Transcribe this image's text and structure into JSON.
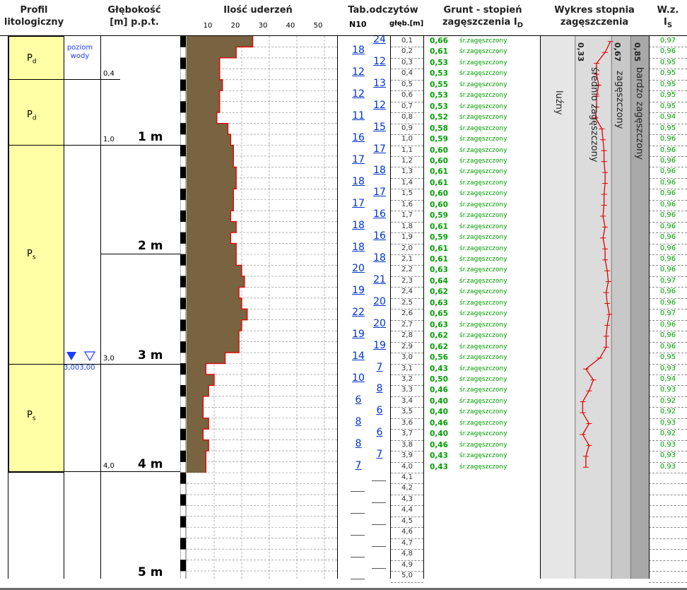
{
  "headers": {
    "profile_line1": "Profil",
    "profile_line2": "litologiczny",
    "depth_line1": "Głębokość",
    "depth_line2": "[m] p.p.t.",
    "blows_title": "Ilość uderzeń",
    "blows_ticks": [
      "10",
      "20",
      "30",
      "40",
      "50"
    ],
    "readings_title": "Tab.odczytów",
    "readings_sub_n10": "N10",
    "readings_sub_depth": "głęb.[m]",
    "soil_line1": "Grunt - stopień",
    "soil_line2": "zagęszczenia I",
    "soil_line2_sub": "D",
    "plot_line1": "Wykres stopnia",
    "plot_line2": "zagęszczenia",
    "wz_line1": "W.z.",
    "wz_line2": "I",
    "wz_line2_sub": "S"
  },
  "layers": [
    {
      "symbol": "P",
      "sub": "d"
    },
    {
      "symbol": "P",
      "sub": "d"
    },
    {
      "symbol": "P",
      "sub": "s"
    },
    {
      "symbol": "P",
      "sub": "s"
    }
  ],
  "water_label": "poziom wody",
  "water_level_label": "3,003,00",
  "boundary_depths": [
    "0,4",
    "1,0",
    "3,0",
    "4,0"
  ],
  "meter_labels": [
    "1 m",
    "2 m",
    "3 m",
    "4 m",
    "5 m"
  ],
  "rows": [
    {
      "depth": "0,1",
      "id": "0,66",
      "desc": "śr.zagęszczony",
      "is": "0,97",
      "blows": 24
    },
    {
      "depth": "0,2",
      "id": "0,61",
      "desc": "śr.zagęszczony",
      "is": "0,96",
      "blows": 18
    },
    {
      "depth": "0,3",
      "id": "0,53",
      "desc": "śr.zagęszczony",
      "is": "0,95",
      "blows": 12
    },
    {
      "depth": "0,4",
      "id": "0,53",
      "desc": "śr.zagęszczony",
      "is": "0,95",
      "blows": 12
    },
    {
      "depth": "0,5",
      "id": "0,55",
      "desc": "śr.zagęszczony",
      "is": "0,95",
      "blows": 13
    },
    {
      "depth": "0,6",
      "id": "0,53",
      "desc": "śr.zagęszczony",
      "is": "0,95",
      "blows": 12
    },
    {
      "depth": "0,7",
      "id": "0,53",
      "desc": "śr.zagęszczony",
      "is": "0,95",
      "blows": 12
    },
    {
      "depth": "0,8",
      "id": "0,52",
      "desc": "śr.zagęszczony",
      "is": "0,94",
      "blows": 11
    },
    {
      "depth": "0,9",
      "id": "0,58",
      "desc": "śr.zagęszczony",
      "is": "0,95",
      "blows": 15
    },
    {
      "depth": "1,0",
      "id": "0,59",
      "desc": "śr.zagęszczony",
      "is": "0,96",
      "blows": 16
    },
    {
      "depth": "1,1",
      "id": "0,60",
      "desc": "śr.zagęszczony",
      "is": "0,96",
      "blows": 17
    },
    {
      "depth": "1,2",
      "id": "0,60",
      "desc": "śr.zagęszczony",
      "is": "0,96",
      "blows": 17
    },
    {
      "depth": "1,3",
      "id": "0,61",
      "desc": "śr.zagęszczony",
      "is": "0,96",
      "blows": 18
    },
    {
      "depth": "1,4",
      "id": "0,61",
      "desc": "śr.zagęszczony",
      "is": "0,96",
      "blows": 18
    },
    {
      "depth": "1,5",
      "id": "0,60",
      "desc": "śr.zagęszczony",
      "is": "0,96",
      "blows": 17
    },
    {
      "depth": "1,6",
      "id": "0,60",
      "desc": "śr.zagęszczony",
      "is": "0,96",
      "blows": 17
    },
    {
      "depth": "1,7",
      "id": "0,59",
      "desc": "śr.zagęszczony",
      "is": "0,96",
      "blows": 16
    },
    {
      "depth": "1,8",
      "id": "0,61",
      "desc": "śr.zagęszczony",
      "is": "0,96",
      "blows": 18
    },
    {
      "depth": "1,9",
      "id": "0,59",
      "desc": "śr.zagęszczony",
      "is": "0,96",
      "blows": 16
    },
    {
      "depth": "2,0",
      "id": "0,61",
      "desc": "śr.zagęszczony",
      "is": "0,96",
      "blows": 18
    },
    {
      "depth": "2,1",
      "id": "0,61",
      "desc": "śr.zagęszczony",
      "is": "0,96",
      "blows": 18
    },
    {
      "depth": "2,2",
      "id": "0,63",
      "desc": "śr.zagęszczony",
      "is": "0,96",
      "blows": 20
    },
    {
      "depth": "2,3",
      "id": "0,64",
      "desc": "śr.zagęszczony",
      "is": "0,97",
      "blows": 21
    },
    {
      "depth": "2,4",
      "id": "0,62",
      "desc": "śr.zagęszczony",
      "is": "0,96",
      "blows": 19
    },
    {
      "depth": "2,5",
      "id": "0,63",
      "desc": "śr.zagęszczony",
      "is": "0,96",
      "blows": 20
    },
    {
      "depth": "2,6",
      "id": "0,65",
      "desc": "śr.zagęszczony",
      "is": "0,97",
      "blows": 22
    },
    {
      "depth": "2,7",
      "id": "0,63",
      "desc": "śr.zagęszczony",
      "is": "0,96",
      "blows": 20
    },
    {
      "depth": "2,8",
      "id": "0,62",
      "desc": "śr.zagęszczony",
      "is": "0,96",
      "blows": 19
    },
    {
      "depth": "2,9",
      "id": "0,62",
      "desc": "śr.zagęszczony",
      "is": "0,96",
      "blows": 19
    },
    {
      "depth": "3,0",
      "id": "0,56",
      "desc": "śr.zagęszczony",
      "is": "0,95",
      "blows": 14
    },
    {
      "depth": "3,1",
      "id": "0,43",
      "desc": "śr.zagęszczony",
      "is": "0,93",
      "blows": 7
    },
    {
      "depth": "3,2",
      "id": "0,50",
      "desc": "śr.zagęszczony",
      "is": "0,94",
      "blows": 10
    },
    {
      "depth": "3,3",
      "id": "0,46",
      "desc": "śr.zagęszczony",
      "is": "0,93",
      "blows": 8
    },
    {
      "depth": "3,4",
      "id": "0,40",
      "desc": "śr.zagęszczony",
      "is": "0,92",
      "blows": 6
    },
    {
      "depth": "3,5",
      "id": "0,40",
      "desc": "śr.zagęszczony",
      "is": "0,92",
      "blows": 6
    },
    {
      "depth": "3,6",
      "id": "0,46",
      "desc": "śr.zagęszczony",
      "is": "0,93",
      "blows": 8
    },
    {
      "depth": "3,7",
      "id": "0,40",
      "desc": "śr.zagęszczony",
      "is": "0,92",
      "blows": 6
    },
    {
      "depth": "3,8",
      "id": "0,46",
      "desc": "śr.zagęszczony",
      "is": "0,93",
      "blows": 8
    },
    {
      "depth": "3,9",
      "id": "0,43",
      "desc": "śr.zagęszczony",
      "is": "0,93",
      "blows": 7
    },
    {
      "depth": "4,0",
      "id": "0,43",
      "desc": "śr.zagęszczony",
      "is": "0,93",
      "blows": 7
    }
  ],
  "empty_depths": [
    "4,1",
    "4,2",
    "4,3",
    "4,4",
    "4,5",
    "4,6",
    "4,7",
    "4,8",
    "4,9",
    "5,0"
  ],
  "plot": {
    "zones": [
      "luźny",
      "średnio zagęszczony",
      "zagęszczony",
      "bardzo zagęszczony"
    ],
    "thresholds": [
      "0,33",
      "0,67",
      "0,85"
    ],
    "colors": {
      "zone1": "#e6e6e6",
      "zone2": "#dcdcdc",
      "zone3": "#c8c8c8",
      "zone4": "#a8a8a8",
      "line": "#e00000"
    }
  },
  "colors": {
    "layer_fill": "#ffffa6",
    "blows_fill": "#7a6340",
    "blows_line": "#e00000",
    "n10": "#0033cc",
    "id_text": "#00a000"
  }
}
